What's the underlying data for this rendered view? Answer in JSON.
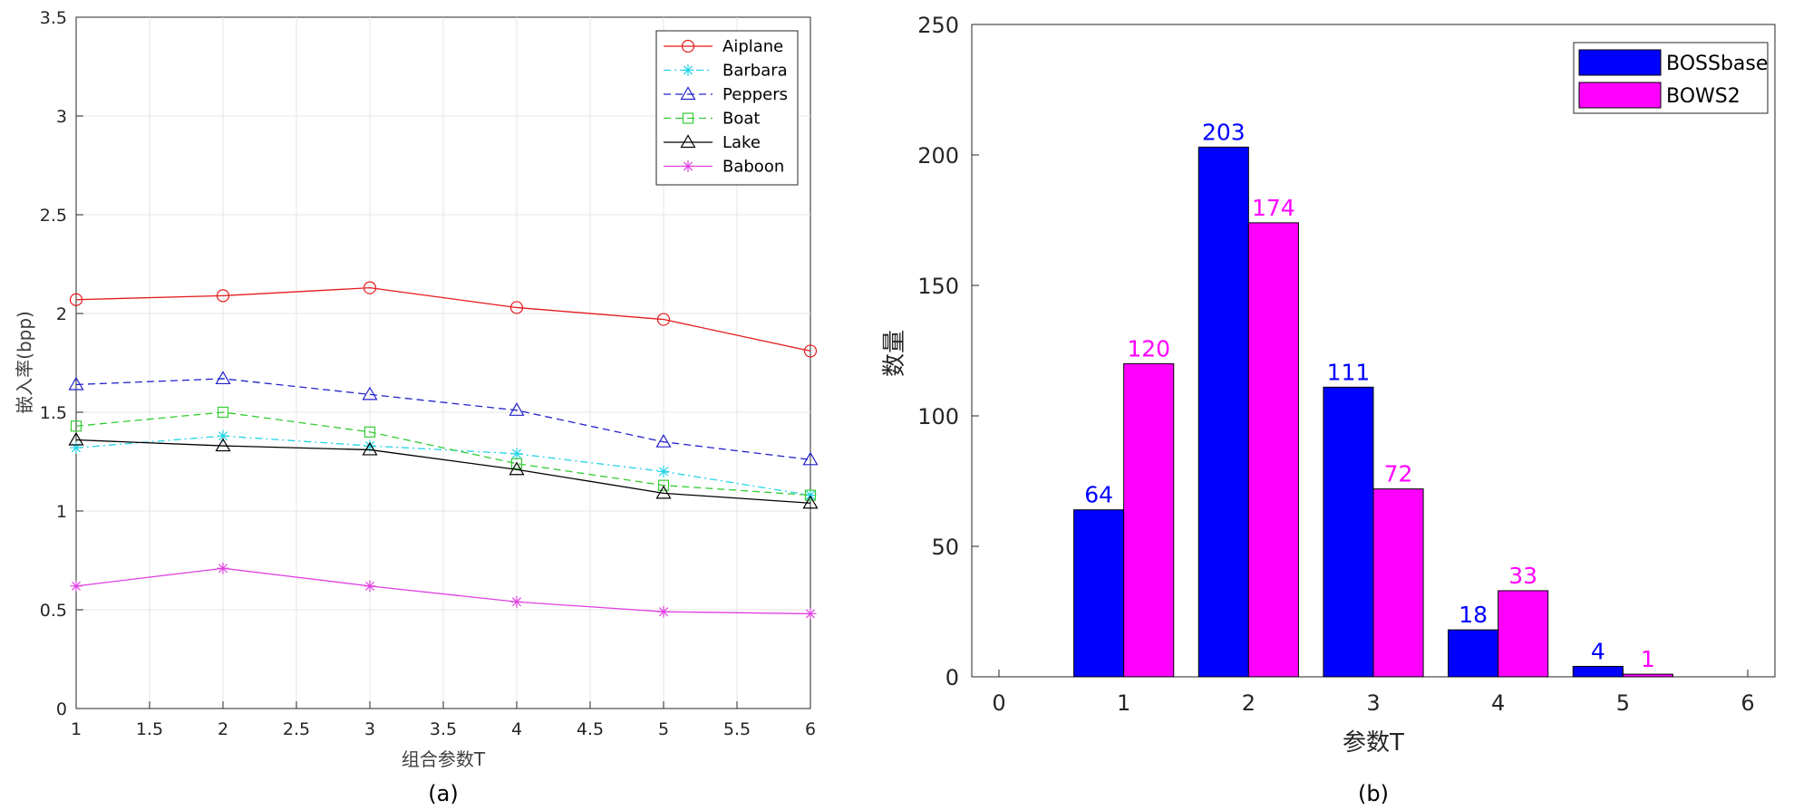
{
  "chart_data": [
    {
      "type": "line",
      "caption": "(a)",
      "xlabel": "组合参数T",
      "ylabel": "嵌入率(bpp)",
      "xlim": [
        1,
        6
      ],
      "ylim": [
        0,
        3.5
      ],
      "xticks": [
        "1",
        "1.5",
        "2",
        "2.5",
        "3",
        "3.5",
        "4",
        "4.5",
        "5",
        "5.5",
        "6"
      ],
      "yticks": [
        "0",
        "0.5",
        "1",
        "1.5",
        "2",
        "2.5",
        "3",
        "3.5"
      ],
      "grid": true,
      "legend_position": "top-right",
      "x": [
        1,
        2,
        3,
        4,
        5,
        6
      ],
      "series": [
        {
          "name": "Aiplane",
          "values": [
            2.07,
            2.09,
            2.13,
            2.03,
            1.97,
            1.81
          ],
          "color": "#e41a1c",
          "marker": "circle",
          "dash": "solid"
        },
        {
          "name": "Barbara",
          "values": [
            1.32,
            1.38,
            1.33,
            1.29,
            1.2,
            1.08
          ],
          "color": "#22d3e6",
          "marker": "star",
          "dash": "dashdot"
        },
        {
          "name": "Peppers",
          "values": [
            1.64,
            1.67,
            1.59,
            1.51,
            1.35,
            1.26
          ],
          "color": "#2222cc",
          "marker": "triangle",
          "dash": "dash"
        },
        {
          "name": "Boat",
          "values": [
            1.43,
            1.5,
            1.4,
            1.24,
            1.13,
            1.08
          ],
          "color": "#33cc33",
          "marker": "square",
          "dash": "dash"
        },
        {
          "name": "Lake",
          "values": [
            1.36,
            1.33,
            1.31,
            1.21,
            1.09,
            1.04
          ],
          "color": "#000000",
          "marker": "triangle",
          "dash": "solid"
        },
        {
          "name": "Baboon",
          "values": [
            0.62,
            0.71,
            0.62,
            0.54,
            0.49,
            0.48
          ],
          "color": "#e040e0",
          "marker": "star",
          "dash": "solid"
        }
      ]
    },
    {
      "type": "bar",
      "caption": "(b)",
      "xlabel": "参数T",
      "ylabel": "数量",
      "xlim": [
        0,
        6
      ],
      "ylim": [
        0,
        250
      ],
      "xticks": [
        "0",
        "1",
        "2",
        "3",
        "4",
        "5",
        "6"
      ],
      "yticks": [
        "0",
        "50",
        "100",
        "150",
        "200",
        "250"
      ],
      "grid": false,
      "legend_position": "top-right",
      "categories": [
        "1",
        "2",
        "3",
        "4",
        "5"
      ],
      "series": [
        {
          "name": "BOSSbase",
          "values": [
            64,
            203,
            111,
            18,
            4
          ],
          "color": "#0000ff"
        },
        {
          "name": "BOWS2",
          "values": [
            120,
            174,
            72,
            33,
            1
          ],
          "color": "#ff00ff"
        }
      ]
    }
  ]
}
